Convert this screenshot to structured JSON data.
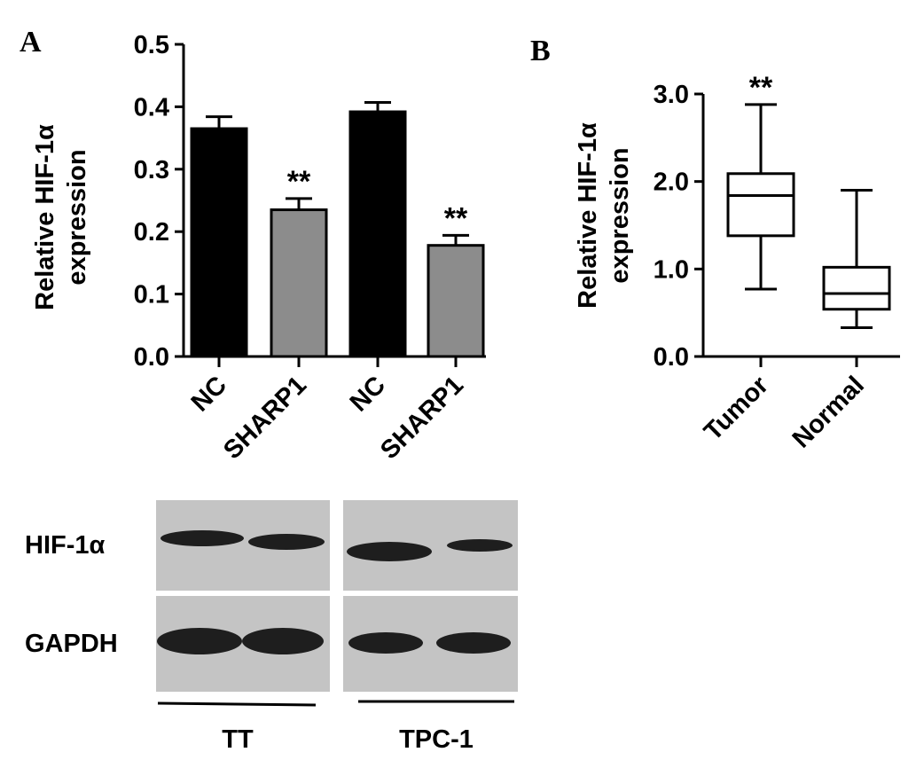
{
  "panels": {
    "a_letter": "A",
    "b_letter": "B"
  },
  "chart_data": [
    {
      "type": "bar",
      "panel": "A",
      "ylabel_line1": "Relative HIF-1α",
      "ylabel_line2": "expression",
      "ylim": [
        0,
        0.5
      ],
      "yticks": [
        "0.0",
        "0.1",
        "0.2",
        "0.3",
        "0.4",
        "0.5"
      ],
      "categories": [
        "NC",
        "SHARP1",
        "NC",
        "SHARP1"
      ],
      "values": [
        0.365,
        0.235,
        0.392,
        0.178
      ],
      "errors": [
        0.019,
        0.018,
        0.015,
        0.016
      ],
      "colors": [
        "#000000",
        "#8c8c8c",
        "#000000",
        "#8c8c8c"
      ],
      "annotations": [
        "",
        "**",
        "",
        "**"
      ]
    },
    {
      "type": "box",
      "panel": "B",
      "ylabel_line1": "Relative HIF-1α",
      "ylabel_line2": "expression",
      "ylim": [
        0,
        3.0
      ],
      "yticks": [
        "0.0",
        "1.0",
        "2.0",
        "3.0"
      ],
      "categories": [
        "Tumor",
        "Normal"
      ],
      "boxes": [
        {
          "min": 0.77,
          "q1": 1.38,
          "median": 1.84,
          "q3": 2.09,
          "max": 2.88
        },
        {
          "min": 0.33,
          "q1": 0.54,
          "median": 0.72,
          "q3": 1.02,
          "max": 1.9
        }
      ],
      "annotations": [
        "**",
        ""
      ]
    }
  ],
  "blot": {
    "rows": [
      "HIF-1α",
      "GAPDH"
    ],
    "groups": [
      "TT",
      "TPC-1"
    ],
    "band_color": "#1e1e1e",
    "membrane_color": "#c4c4c4"
  }
}
